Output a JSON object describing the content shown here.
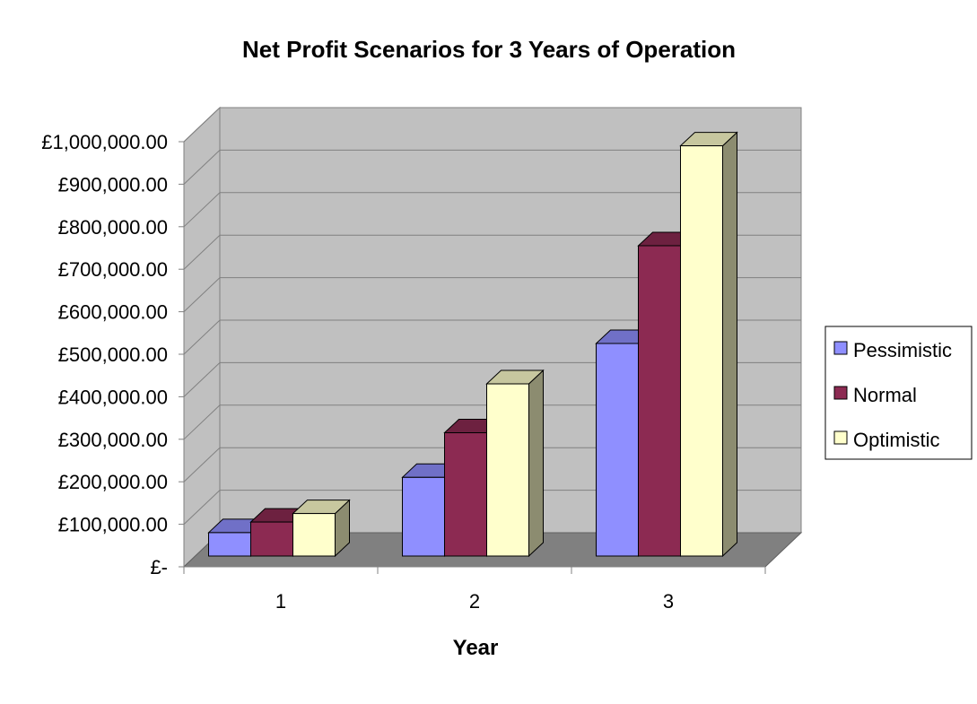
{
  "chart_data": {
    "type": "bar",
    "title": "Net Profit Scenarios for 3 Years of Operation",
    "xlabel": "Year",
    "ylabel": "",
    "categories": [
      "1",
      "2",
      "3"
    ],
    "series": [
      {
        "name": "Pessimistic",
        "values": [
          55000,
          185000,
          500000
        ],
        "color": "#8f8fff"
      },
      {
        "name": "Normal",
        "values": [
          80000,
          290000,
          730000
        ],
        "color": "#8c2a52"
      },
      {
        "name": "Optimistic",
        "values": [
          100000,
          405000,
          965000
        ],
        "color": "#ffffcc"
      }
    ],
    "ylim": [
      0,
      1000000
    ],
    "ytick_values": [
      0,
      100000,
      200000,
      300000,
      400000,
      500000,
      600000,
      700000,
      800000,
      900000,
      1000000
    ],
    "ytick_labels": [
      "£-",
      "£100,000.00",
      "£200,000.00",
      "£300,000.00",
      "£400,000.00",
      "£500,000.00",
      "£600,000.00",
      "£700,000.00",
      "£800,000.00",
      "£900,000.00",
      "£1,000,000.00"
    ],
    "grid": true,
    "legend_position": "right",
    "style": "3d-clustered-column",
    "colors": {
      "back_wall": "#c0c0c0",
      "side_wall": "#c0c0c0",
      "floor": "#808080",
      "gridline": "#808080"
    }
  }
}
